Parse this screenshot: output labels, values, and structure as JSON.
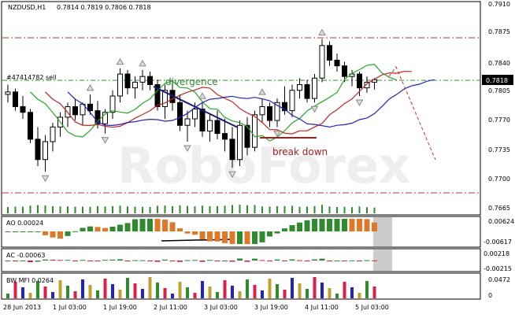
{
  "title": {
    "symbol": "NZDUSD,H1",
    "ohlc": "0.7814 0.7819 0.7806 0.7818"
  },
  "order_label": "#47414782 sell",
  "annotations": {
    "divergence": "divergence",
    "break_down": "break down"
  },
  "price_axis": {
    "labels": [
      "0.7910",
      "0.7875",
      "0.7840",
      "0.7805",
      "0.7770",
      "0.7735",
      "0.7700",
      "0.7665"
    ],
    "current_price": "0.7818",
    "ylim": [
      0.7655,
      0.7912
    ]
  },
  "time_axis": {
    "labels": [
      "28 Jun 2013",
      "1 Jul 03:00",
      "1 Jul 19:00",
      "2 Jul 11:00",
      "3 Jul 03:00",
      "3 Jul 19:00",
      "4 Jul 11:00",
      "5 Jul 03:00"
    ]
  },
  "indicators": {
    "ao": {
      "label": "AO 0.00024",
      "scale": [
        "0.00624",
        "-0.00617"
      ]
    },
    "ac": {
      "label": "AC -0.00063",
      "scale": [
        "0.00218",
        "-0.00215"
      ]
    },
    "mfi": {
      "label": "BW MFI 0.0264",
      "scale": [
        "0.0472",
        "0"
      ]
    }
  },
  "colors": {
    "bull_candle": "#ffffff",
    "bear_candle": "#000000",
    "green_line": "#22aa22",
    "red_line": "#cc2222",
    "blue_line": "#2222cc",
    "ao_up": "#2e8b2e",
    "ao_down": "#e07828",
    "ac_up": "#2e8b2e",
    "ac_down": "#d8204a"
  },
  "chart_data": {
    "type": "candlestick",
    "title": "NZDUSD,H1",
    "ylim": [
      0.7655,
      0.7912
    ],
    "ohlc": [
      [
        0.78,
        0.7812,
        0.779,
        0.7803
      ],
      [
        0.7803,
        0.7807,
        0.778,
        0.7785
      ],
      [
        0.7785,
        0.7798,
        0.777,
        0.7778
      ],
      [
        0.7778,
        0.7782,
        0.774,
        0.7745
      ],
      [
        0.7745,
        0.776,
        0.7712,
        0.772
      ],
      [
        0.772,
        0.775,
        0.7705,
        0.7742
      ],
      [
        0.7742,
        0.7765,
        0.773,
        0.776
      ],
      [
        0.776,
        0.7778,
        0.7748,
        0.7772
      ],
      [
        0.7772,
        0.779,
        0.776,
        0.7785
      ],
      [
        0.7785,
        0.7795,
        0.7768,
        0.7775
      ],
      [
        0.7775,
        0.779,
        0.7762,
        0.7788
      ],
      [
        0.7788,
        0.78,
        0.7775,
        0.778
      ],
      [
        0.778,
        0.7792,
        0.7758,
        0.7764
      ],
      [
        0.7764,
        0.7782,
        0.7752,
        0.7778
      ],
      [
        0.7778,
        0.7805,
        0.777,
        0.7798
      ],
      [
        0.7798,
        0.7832,
        0.779,
        0.7825
      ],
      [
        0.7825,
        0.783,
        0.78,
        0.7808
      ],
      [
        0.7808,
        0.7822,
        0.7795,
        0.7815
      ],
      [
        0.7815,
        0.783,
        0.7805,
        0.7822
      ],
      [
        0.7822,
        0.7828,
        0.7805,
        0.7812
      ],
      [
        0.7812,
        0.7818,
        0.778,
        0.7785
      ],
      [
        0.7785,
        0.7812,
        0.777,
        0.7805
      ],
      [
        0.7805,
        0.7815,
        0.778,
        0.779
      ],
      [
        0.779,
        0.78,
        0.7755,
        0.7762
      ],
      [
        0.7762,
        0.778,
        0.7742,
        0.777
      ],
      [
        0.777,
        0.779,
        0.776,
        0.7782
      ],
      [
        0.7782,
        0.779,
        0.7748,
        0.7755
      ],
      [
        0.7755,
        0.7775,
        0.7742,
        0.7768
      ],
      [
        0.7768,
        0.778,
        0.7745,
        0.7752
      ],
      [
        0.7752,
        0.777,
        0.773,
        0.7745
      ],
      [
        0.7745,
        0.776,
        0.771,
        0.772
      ],
      [
        0.772,
        0.7768,
        0.7712,
        0.7762
      ],
      [
        0.7762,
        0.7772,
        0.7725,
        0.7735
      ],
      [
        0.7735,
        0.778,
        0.773,
        0.7775
      ],
      [
        0.7775,
        0.7795,
        0.7765,
        0.7785
      ],
      [
        0.7785,
        0.779,
        0.776,
        0.7768
      ],
      [
        0.7768,
        0.7795,
        0.776,
        0.779
      ],
      [
        0.779,
        0.781,
        0.7775,
        0.778
      ],
      [
        0.778,
        0.7812,
        0.7772,
        0.7805
      ],
      [
        0.7805,
        0.782,
        0.7795,
        0.7812
      ],
      [
        0.7812,
        0.7818,
        0.779,
        0.7795
      ],
      [
        0.7795,
        0.7825,
        0.779,
        0.782
      ],
      [
        0.782,
        0.7868,
        0.7815,
        0.786
      ],
      [
        0.786,
        0.7865,
        0.7835,
        0.7842
      ],
      [
        0.7842,
        0.785,
        0.7828,
        0.7835
      ],
      [
        0.7835,
        0.784,
        0.7815,
        0.7822
      ],
      [
        0.7822,
        0.783,
        0.781,
        0.7825
      ],
      [
        0.7825,
        0.7828,
        0.7798,
        0.7808
      ],
      [
        0.7808,
        0.7822,
        0.7802,
        0.7815
      ],
      [
        0.7815,
        0.782,
        0.7806,
        0.7818
      ]
    ]
  }
}
